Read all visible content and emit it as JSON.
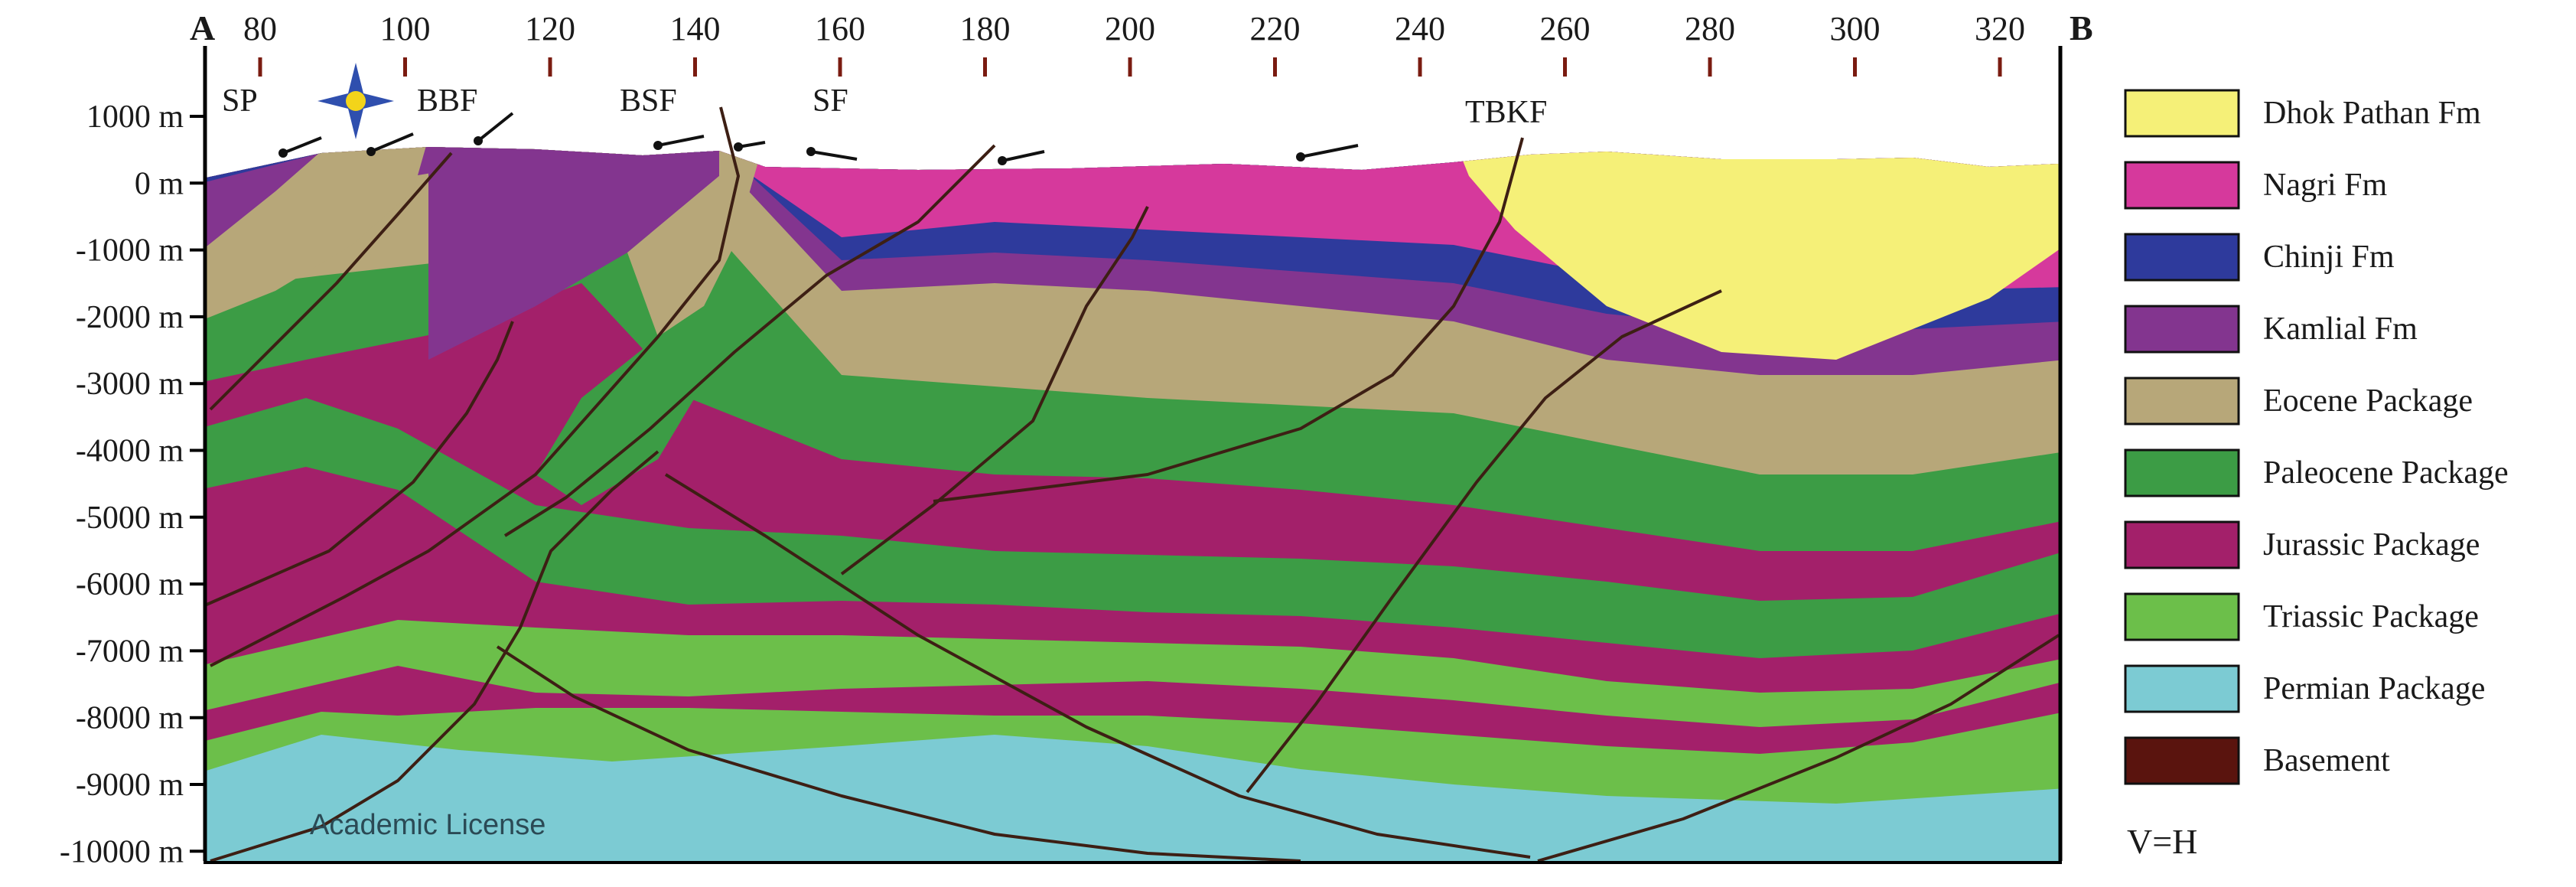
{
  "section": {
    "label_start": "A",
    "label_end": "B",
    "km_ticks": [
      "80",
      "100",
      "120",
      "140",
      "160",
      "180",
      "200",
      "220",
      "240",
      "260",
      "280",
      "300",
      "320"
    ],
    "depth_ticks": [
      "1000 m",
      "0 m",
      "-1000 m",
      "-2000 m",
      "-3000 m",
      "-4000 m",
      "-5000 m",
      "-6000 m",
      "-7000 m",
      "-8000 m",
      "-9000 m",
      "-10000 m"
    ],
    "faults": [
      "SP",
      "BBF",
      "BSF",
      "SF",
      "TBKF"
    ],
    "watermark": "Academic License",
    "scale_note": "V=H"
  },
  "legend": [
    {
      "label": "Dhok Pathan Fm",
      "color": "#f5f078"
    },
    {
      "label": "Nagri Fm",
      "color": "#d6399c"
    },
    {
      "label": "Chinji Fm",
      "color": "#2e3a9c"
    },
    {
      "label": "Kamlial Fm",
      "color": "#83358f"
    },
    {
      "label": "Eocene Package",
      "color": "#b7a779"
    },
    {
      "label": "Paleocene Package",
      "color": "#3c9c45"
    },
    {
      "label": "Jurassic Package",
      "color": "#a3206a"
    },
    {
      "label": "Triassic Package",
      "color": "#6cbf4a"
    },
    {
      "label": "Permian Package",
      "color": "#7ccbd3"
    },
    {
      "label": "Basement",
      "color": "#5a140e"
    }
  ]
}
